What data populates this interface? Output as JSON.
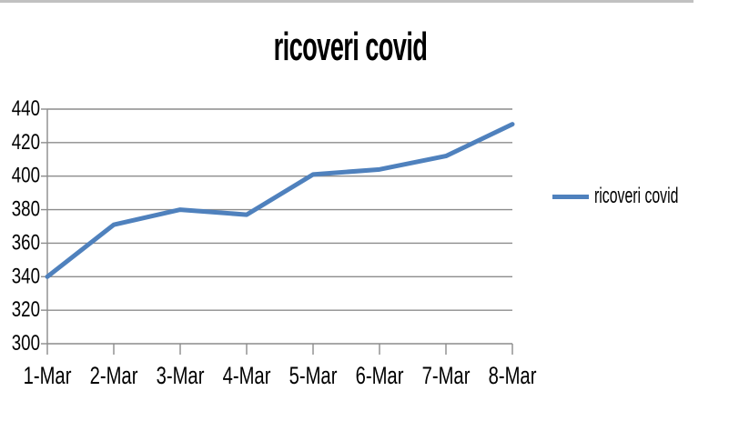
{
  "frame": {
    "top_border_color": "#C1C1C1",
    "background_color": "#FFFFFF"
  },
  "chart_data": {
    "type": "line",
    "title": "ricoveri covid",
    "categories": [
      "1-Mar",
      "2-Mar",
      "3-Mar",
      "4-Mar",
      "5-Mar",
      "6-Mar",
      "7-Mar",
      "8-Mar"
    ],
    "series": [
      {
        "name": "ricoveri covid",
        "values": [
          340,
          371,
          380,
          377,
          401,
          404,
          412,
          431
        ],
        "color": "#4F81BD"
      }
    ],
    "xlabel": "",
    "ylabel": "",
    "ylim": [
      300,
      440
    ],
    "yticks": [
      300,
      320,
      340,
      360,
      380,
      400,
      420,
      440
    ],
    "grid": true,
    "legend_position": "right",
    "gridline_color": "#8C8C8C",
    "axis_color": "#8C8C8C",
    "text_color": "#000000"
  }
}
